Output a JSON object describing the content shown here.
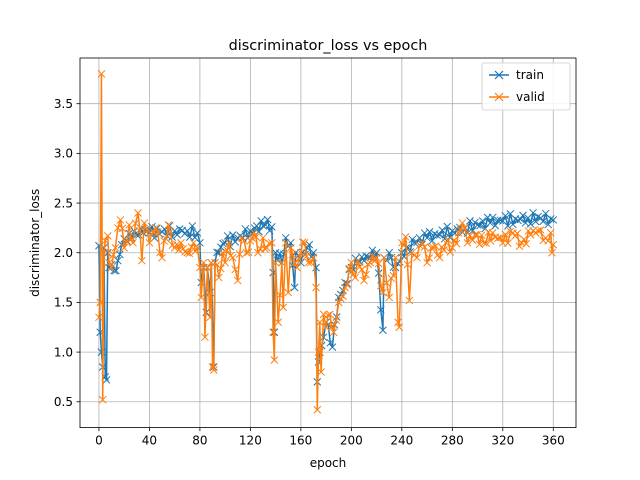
{
  "chart_data": {
    "type": "line",
    "title": "discriminator_loss vs epoch",
    "xlabel": "epoch",
    "ylabel": "discriminator_loss",
    "xlim": [
      -15,
      378
    ],
    "ylim": [
      0.24,
      3.96
    ],
    "x_ticks": [
      0,
      40,
      80,
      120,
      160,
      200,
      240,
      280,
      320,
      360
    ],
    "y_ticks": [
      0.5,
      1.0,
      1.5,
      2.0,
      2.5,
      3.0,
      3.5
    ],
    "y_tick_labels": [
      "0.5",
      "1.0",
      "1.5",
      "2.0",
      "2.5",
      "3.0",
      "3.5"
    ],
    "grid": true,
    "legend": "top-right",
    "marker": "x",
    "series": [
      {
        "name": "train",
        "color": "#1f77b4",
        "anchors": [
          [
            0,
            2.07
          ],
          [
            1,
            1.2
          ],
          [
            2,
            1.0
          ],
          [
            3,
            0.85
          ],
          [
            4,
            2.05
          ],
          [
            5,
            0.75
          ],
          [
            6,
            0.72
          ],
          [
            7,
            2.0
          ],
          [
            8,
            1.85
          ],
          [
            10,
            1.88
          ],
          [
            12,
            1.82
          ],
          [
            15,
            1.92
          ],
          [
            18,
            2.08
          ],
          [
            22,
            2.12
          ],
          [
            26,
            2.15
          ],
          [
            30,
            2.18
          ],
          [
            35,
            2.2
          ],
          [
            40,
            2.2
          ],
          [
            50,
            2.21
          ],
          [
            60,
            2.22
          ],
          [
            70,
            2.22
          ],
          [
            78,
            2.2
          ],
          [
            80,
            2.1
          ],
          [
            81,
            1.7
          ],
          [
            83,
            1.85
          ],
          [
            85,
            1.4
          ],
          [
            86,
            1.85
          ],
          [
            88,
            1.6
          ],
          [
            89,
            1.9
          ],
          [
            91,
            0.85
          ],
          [
            92,
            1.9
          ],
          [
            95,
            2.0
          ],
          [
            100,
            2.1
          ],
          [
            110,
            2.15
          ],
          [
            120,
            2.22
          ],
          [
            125,
            2.27
          ],
          [
            132,
            2.28
          ],
          [
            137,
            2.26
          ],
          [
            138,
            1.8
          ],
          [
            139,
            1.2
          ],
          [
            140,
            2.0
          ],
          [
            145,
            1.9
          ],
          [
            148,
            2.15
          ],
          [
            152,
            2.1
          ],
          [
            155,
            1.65
          ],
          [
            156,
            2.0
          ],
          [
            160,
            1.9
          ],
          [
            165,
            2.05
          ],
          [
            170,
            2.0
          ],
          [
            172,
            1.85
          ],
          [
            173,
            0.7
          ],
          [
            174,
            0.9
          ],
          [
            175,
            1.0
          ],
          [
            178,
            1.15
          ],
          [
            180,
            1.3
          ],
          [
            185,
            1.05
          ],
          [
            190,
            1.55
          ],
          [
            195,
            1.7
          ],
          [
            200,
            1.85
          ],
          [
            205,
            1.9
          ],
          [
            210,
            1.92
          ],
          [
            215,
            1.95
          ],
          [
            220,
            2.0
          ],
          [
            225,
            1.22
          ],
          [
            226,
            1.95
          ],
          [
            230,
            2.0
          ],
          [
            235,
            1.85
          ],
          [
            240,
            2.0
          ],
          [
            245,
            2.05
          ],
          [
            250,
            2.1
          ],
          [
            260,
            2.15
          ],
          [
            270,
            2.18
          ],
          [
            280,
            2.22
          ],
          [
            290,
            2.25
          ],
          [
            300,
            2.28
          ],
          [
            310,
            2.3
          ],
          [
            320,
            2.32
          ],
          [
            330,
            2.34
          ],
          [
            340,
            2.35
          ],
          [
            350,
            2.35
          ],
          [
            358,
            2.34
          ],
          [
            360,
            2.33
          ]
        ]
      },
      {
        "name": "valid",
        "color": "#ff7f0e",
        "anchors": [
          [
            0,
            1.35
          ],
          [
            1,
            1.5
          ],
          [
            2,
            3.8
          ],
          [
            3,
            0.52
          ],
          [
            4,
            2.0
          ],
          [
            5,
            2.12
          ],
          [
            7,
            2.17
          ],
          [
            8,
            1.9
          ],
          [
            10,
            1.85
          ],
          [
            13,
            2.05
          ],
          [
            17,
            2.33
          ],
          [
            20,
            2.05
          ],
          [
            24,
            2.28
          ],
          [
            27,
            2.1
          ],
          [
            31,
            2.4
          ],
          [
            34,
            1.92
          ],
          [
            36,
            2.3
          ],
          [
            40,
            2.1
          ],
          [
            45,
            2.25
          ],
          [
            50,
            1.95
          ],
          [
            55,
            2.28
          ],
          [
            60,
            2.05
          ],
          [
            65,
            2.1
          ],
          [
            70,
            2.0
          ],
          [
            75,
            2.1
          ],
          [
            78,
            2.05
          ],
          [
            80,
            1.85
          ],
          [
            81,
            1.55
          ],
          [
            83,
            1.9
          ],
          [
            84,
            1.15
          ],
          [
            86,
            1.85
          ],
          [
            88,
            1.35
          ],
          [
            89,
            1.9
          ],
          [
            90,
            0.85
          ],
          [
            91,
            0.82
          ],
          [
            92,
            1.9
          ],
          [
            95,
            1.75
          ],
          [
            98,
            2.0
          ],
          [
            100,
            1.9
          ],
          [
            103,
            2.1
          ],
          [
            106,
            1.95
          ],
          [
            110,
            1.72
          ],
          [
            113,
            2.15
          ],
          [
            117,
            2.0
          ],
          [
            120,
            2.12
          ],
          [
            123,
            2.2
          ],
          [
            126,
            2.0
          ],
          [
            130,
            2.15
          ],
          [
            133,
            2.05
          ],
          [
            137,
            2.1
          ],
          [
            138,
            1.2
          ],
          [
            139,
            0.92
          ],
          [
            140,
            1.9
          ],
          [
            142,
            1.3
          ],
          [
            145,
            1.9
          ],
          [
            146,
            1.45
          ],
          [
            148,
            2.1
          ],
          [
            150,
            1.6
          ],
          [
            152,
            2.05
          ],
          [
            155,
            1.9
          ],
          [
            157,
            1.85
          ],
          [
            160,
            2.0
          ],
          [
            163,
            2.1
          ],
          [
            166,
            1.9
          ],
          [
            170,
            1.95
          ],
          [
            172,
            1.65
          ],
          [
            173,
            0.42
          ],
          [
            174,
            1.0
          ],
          [
            175,
            1.3
          ],
          [
            176,
            0.8
          ],
          [
            178,
            1.38
          ],
          [
            180,
            1.25
          ],
          [
            183,
            1.38
          ],
          [
            186,
            1.2
          ],
          [
            190,
            1.5
          ],
          [
            195,
            1.65
          ],
          [
            200,
            1.9
          ],
          [
            203,
            1.75
          ],
          [
            205,
            1.92
          ],
          [
            210,
            1.72
          ],
          [
            215,
            1.9
          ],
          [
            220,
            1.95
          ],
          [
            225,
            1.6
          ],
          [
            226,
            1.95
          ],
          [
            230,
            1.55
          ],
          [
            235,
            1.95
          ],
          [
            237,
            1.3
          ],
          [
            238,
            1.25
          ],
          [
            240,
            2.1
          ],
          [
            243,
            2.16
          ],
          [
            246,
            1.52
          ],
          [
            248,
            2.0
          ],
          [
            252,
            1.95
          ],
          [
            256,
            2.1
          ],
          [
            260,
            1.9
          ],
          [
            265,
            2.05
          ],
          [
            270,
            1.95
          ],
          [
            275,
            2.1
          ],
          [
            280,
            2.05
          ],
          [
            285,
            2.2
          ],
          [
            288,
            2.3
          ],
          [
            292,
            2.1
          ],
          [
            298,
            2.18
          ],
          [
            305,
            2.1
          ],
          [
            312,
            2.2
          ],
          [
            320,
            2.1
          ],
          [
            328,
            2.2
          ],
          [
            335,
            2.1
          ],
          [
            342,
            2.18
          ],
          [
            348,
            2.22
          ],
          [
            354,
            2.15
          ],
          [
            358,
            2.2
          ],
          [
            359,
            2.0
          ],
          [
            360,
            2.08
          ]
        ]
      }
    ]
  }
}
